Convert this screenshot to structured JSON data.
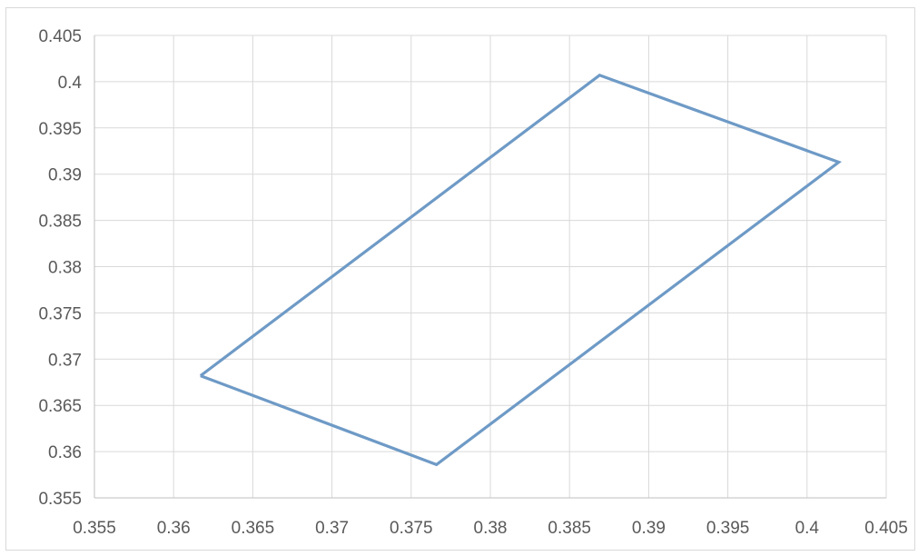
{
  "chart_data": {
    "type": "scatter",
    "title": "",
    "xlabel": "",
    "ylabel": "",
    "xlim": [
      0.355,
      0.405
    ],
    "ylim": [
      0.355,
      0.405
    ],
    "x_ticks": [
      "0.355",
      "0.36",
      "0.365",
      "0.37",
      "0.375",
      "0.38",
      "0.385",
      "0.39",
      "0.395",
      "0.4",
      "0.405"
    ],
    "y_ticks": [
      "0.355",
      "0.36",
      "0.365",
      "0.37",
      "0.375",
      "0.38",
      "0.385",
      "0.39",
      "0.395",
      "0.4",
      "0.405"
    ],
    "grid": true,
    "legend": "none",
    "series": [
      {
        "style": "straight-lines-no-markers",
        "color": "#6e9ac6",
        "points": [
          {
            "x": 0.3617,
            "y": 0.3682
          },
          {
            "x": 0.3869,
            "y": 0.4007
          },
          {
            "x": 0.402,
            "y": 0.3913
          },
          {
            "x": 0.3766,
            "y": 0.3586
          },
          {
            "x": 0.3617,
            "y": 0.3682
          }
        ]
      }
    ]
  }
}
